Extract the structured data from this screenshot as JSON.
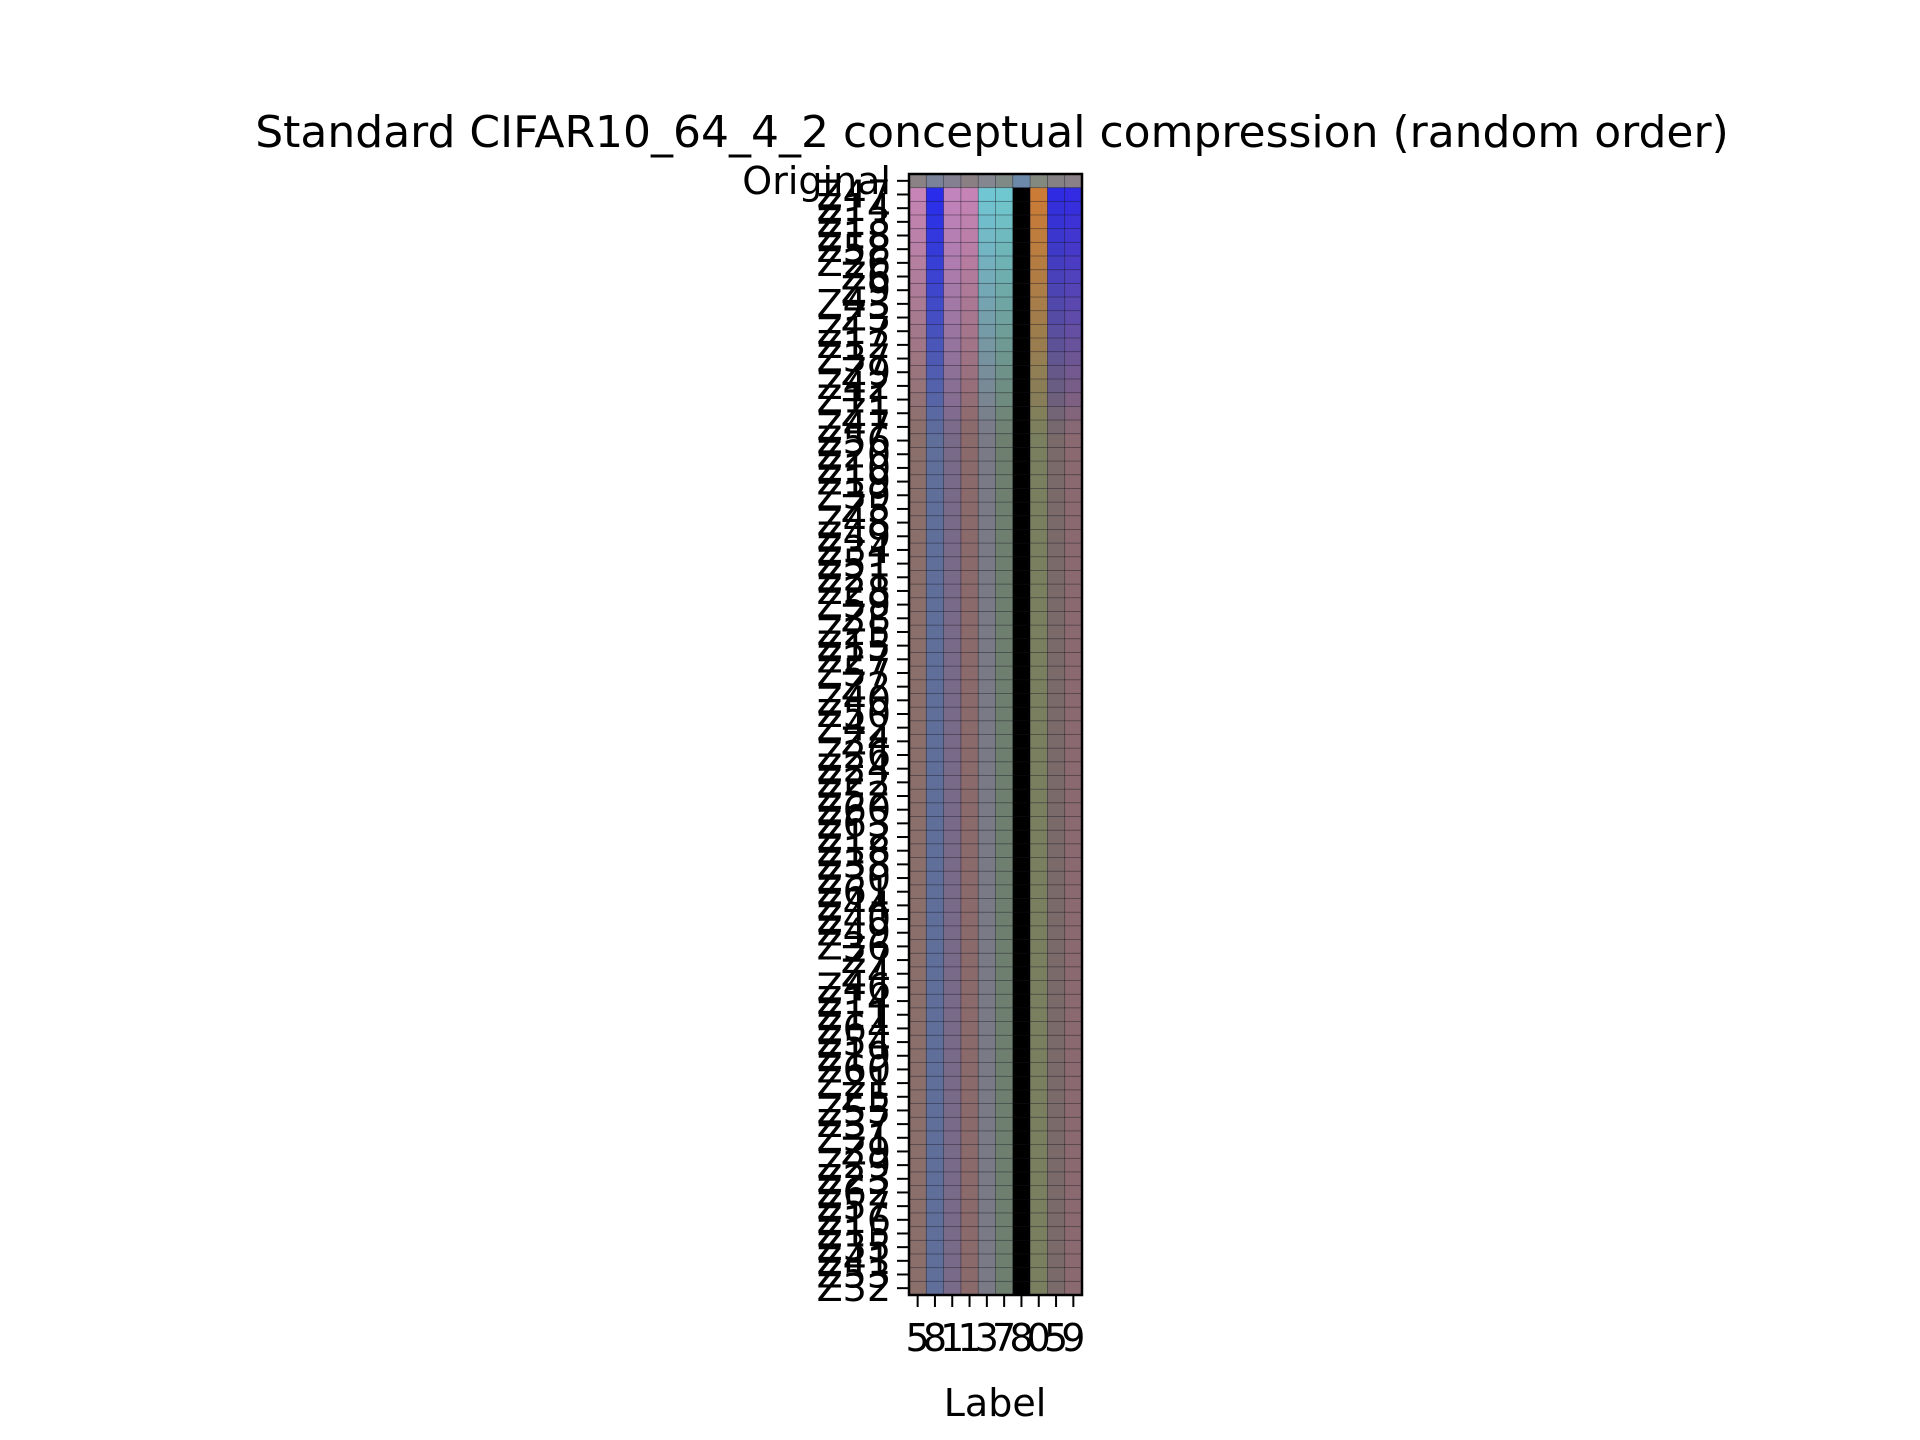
{
  "chart_data": {
    "type": "heatmap",
    "title": "Standard CIFAR10_64_4_2 conceptual compression (random order)",
    "xlabel": "Label",
    "ylabel": "",
    "x_categories": [
      "5",
      "8",
      "1",
      "1",
      "3",
      "7",
      "8",
      "0",
      "5",
      "9"
    ],
    "y_categories": [
      "Original",
      "Z47",
      "Z14",
      "Z13",
      "Z18",
      "Z58",
      "Z26",
      "Z6",
      "Z9",
      "Z43",
      "Z3",
      "Z17",
      "Z12",
      "Z37",
      "Z9",
      "Z42",
      "Z11",
      "Z1",
      "Z47",
      "Z56",
      "Z20",
      "Z10",
      "Z19",
      "Z39",
      "Z5",
      "Z48",
      "Z49",
      "Z34",
      "Z51",
      "Z21",
      "Z28",
      "Z59",
      "Z8",
      "Z25",
      "Z15",
      "Z27",
      "Z57",
      "Z2",
      "Z40",
      "Z50",
      "Z42",
      "Z4",
      "Z26",
      "Z24",
      "Z22",
      "Z52",
      "Z60",
      "Z63",
      "Z12",
      "Z18",
      "Z38",
      "Z30",
      "Z61",
      "Z44",
      "Z40",
      "Z49",
      "Z36",
      "Z7",
      "Z4",
      "Z46",
      "Z14",
      "Z11",
      "Z64",
      "Z54",
      "Z19",
      "Z60",
      "Z21",
      "Z5",
      "Z55",
      "Z37",
      "Z31",
      "Z9",
      "Z29",
      "Z23",
      "Z62",
      "Z57",
      "Z16",
      "Z15",
      "Z35",
      "Z41",
      "Z53",
      "Z32"
    ],
    "colors": {
      "frame": "#000000",
      "background": "#ffffff",
      "base_cell": "#6b6f7c",
      "original_row": "#8a8f96",
      "blue_column": "#2e6fbf",
      "highlight_blue": "#1c1cff",
      "highlight_pink": "#d48ac8",
      "highlight_cyan": "#6fd8e6",
      "highlight_orange": "#e07a2c"
    }
  }
}
